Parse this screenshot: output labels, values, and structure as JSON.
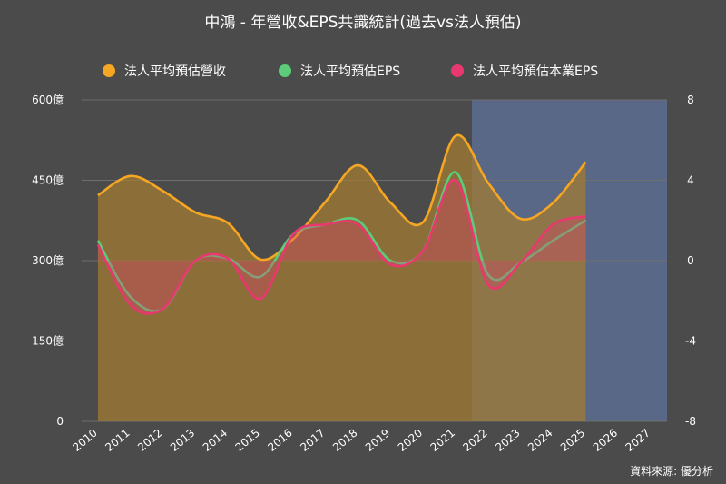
{
  "title": "中鴻 - 年營收&EPS共識統計(過去vs法人預估)",
  "source": "資料來源: 優分析",
  "chart_data": {
    "type": "area",
    "categories": [
      "2010",
      "2011",
      "2012",
      "2013",
      "2014",
      "2015",
      "2016",
      "2017",
      "2018",
      "2019",
      "2020",
      "2021",
      "2022",
      "2023",
      "2024",
      "2025",
      "2026",
      "2027"
    ],
    "forecast_start": "2022",
    "forecast_end": "2027",
    "y_left": {
      "ticks": [
        "0",
        "150億",
        "300億",
        "450億",
        "600億"
      ],
      "lim": [
        0,
        600
      ]
    },
    "y_right": {
      "ticks": [
        "-8",
        "-4",
        "0",
        "4",
        "8"
      ],
      "lim": [
        -8,
        8
      ]
    },
    "series": [
      {
        "name": "法人平均預估營收",
        "axis": "left",
        "color": "#f5a623",
        "values": [
          422,
          458,
          430,
          390,
          370,
          302,
          340,
          410,
          478,
          408,
          372,
          533,
          445,
          378,
          408,
          484,
          null,
          null
        ]
      },
      {
        "name": "法人平均預估EPS",
        "axis": "right",
        "color": "#5ccb7a",
        "values": [
          1.0,
          -1.8,
          -2.4,
          0.0,
          0.1,
          -0.8,
          1.3,
          1.8,
          2.0,
          0.0,
          0.5,
          4.4,
          -0.7,
          -0.1,
          1.0,
          2.0,
          null,
          null
        ]
      },
      {
        "name": "法人平均預估本業EPS",
        "axis": "right",
        "color": "#e8386f",
        "values": [
          0.8,
          -2.2,
          -2.4,
          0.0,
          0.1,
          -1.9,
          1.3,
          1.8,
          1.8,
          -0.2,
          0.5,
          4.0,
          -1.2,
          -0.1,
          1.8,
          2.2,
          null,
          null
        ]
      }
    ]
  }
}
